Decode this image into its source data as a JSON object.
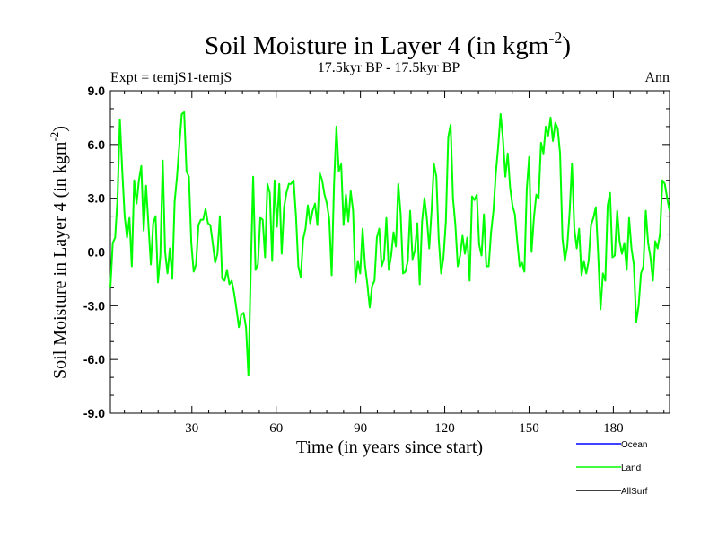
{
  "chart_data": {
    "type": "line",
    "title": "Soil Moisture in Layer 4 (in kgm",
    "title_sup": "-2",
    "title_close": ")",
    "subtitle_left": "Expt = temjS1-temjS",
    "subtitle_center": "17.5kyr BP - 17.5kyr BP",
    "subtitle_right": "Ann",
    "xlabel": "Time (in years since start)",
    "ylabel": "Soil Moisture in Layer 4 (in kgm",
    "ylabel_sup": "-2",
    "ylabel_close": ")",
    "xlim": [
      1,
      200
    ],
    "ylim": [
      -9,
      9
    ],
    "x_ticks": [
      30,
      60,
      90,
      120,
      150,
      180
    ],
    "x_tick_labels": [
      "30",
      "60",
      "90",
      "120",
      "150",
      "180"
    ],
    "y_ticks": [
      -9,
      -6,
      -3,
      0,
      3,
      6,
      9
    ],
    "y_tick_labels": [
      "-9.0",
      "-6.0",
      "-3.0",
      "0.0",
      "3.0",
      "6.0",
      "9.0"
    ],
    "zero_line": 0,
    "legend": [
      {
        "name": "Ocean",
        "color": "#0000ff"
      },
      {
        "name": "Land",
        "color": "#00ff00"
      },
      {
        "name": "AllSurf",
        "color": "#000000"
      }
    ],
    "series": [
      {
        "name": "Land",
        "color": "#00ff00",
        "x_start": 1,
        "values": [
          -2.0,
          0.5,
          0.8,
          3.0,
          7.4,
          4.5,
          2.0,
          0.8,
          1.9,
          -0.8,
          4.0,
          2.7,
          4.0,
          4.8,
          1.2,
          3.7,
          1.5,
          -0.7,
          1.6,
          2.0,
          -1.7,
          -0.2,
          5.1,
          0.0,
          -1.2,
          0.2,
          -1.5,
          2.8,
          4.2,
          6.0,
          7.7,
          7.8,
          4.5,
          4.2,
          0.5,
          -1.1,
          -0.7,
          1.5,
          1.8,
          1.8,
          2.4,
          1.6,
          1.5,
          0.5,
          -0.6,
          -0.1,
          2.0,
          -1.5,
          -1.6,
          -1.0,
          -1.8,
          -1.6,
          -2.3,
          -3.2,
          -4.2,
          -3.5,
          -3.4,
          -4.2,
          -6.9,
          -1.0,
          4.2,
          -1.0,
          -0.7,
          1.9,
          1.8,
          -0.3,
          3.8,
          3.3,
          -0.5,
          4.0,
          1.4,
          3.8,
          -0.1,
          2.5,
          3.3,
          3.8,
          3.8,
          4.0,
          2.0,
          -0.8,
          -1.4,
          0.7,
          1.3,
          2.6,
          1.6,
          2.3,
          2.7,
          1.5,
          4.4,
          4.0,
          3.2,
          2.7,
          1.8,
          -1.3,
          3.8,
          7.0,
          4.5,
          4.9,
          1.5,
          3.2,
          1.7,
          3.4,
          2.3,
          -1.7,
          -0.5,
          -1.2,
          1.3,
          -0.7,
          -1.8,
          -3.1,
          -1.9,
          -1.6,
          0.8,
          1.3,
          -0.8,
          -0.4,
          1.9,
          -1.0,
          -0.2,
          1.1,
          0.3,
          3.8,
          2.1,
          -1.2,
          -1.1,
          -0.5,
          2.3,
          -0.4,
          0.1,
          1.6,
          -1.8,
          1.7,
          3.0,
          1.9,
          0.2,
          2.3,
          4.9,
          4.2,
          0.7,
          -1.2,
          -0.3,
          1.7,
          6.4,
          7.1,
          3.0,
          1.5,
          -0.8,
          -0.2,
          0.9,
          -0.1,
          0.8,
          -1.6,
          3.1,
          2.9,
          3.2,
          0.4,
          -0.2,
          2.1,
          -0.8,
          -0.8,
          1.1,
          2.3,
          4.4,
          5.9,
          7.7,
          6.3,
          4.2,
          5.5,
          3.6,
          2.6,
          2.1,
          0.6,
          -0.8,
          -0.6,
          -1.1,
          3.5,
          5.3,
          0.0,
          1.9,
          3.2,
          3.0,
          6.1,
          5.5,
          7.0,
          6.5,
          7.5,
          6.2,
          7.2,
          6.9,
          5.5,
          0.8,
          -0.5,
          0.3,
          2.2,
          4.9,
          1.3,
          0.2,
          1.3,
          -1.3,
          -0.5,
          -1.2,
          -0.5,
          1.5,
          1.9,
          2.5,
          -0.1,
          -3.2,
          -1.2,
          -1.6,
          2.6,
          3.3,
          -0.3,
          -0.2,
          2.3,
          0.6,
          -0.1,
          0.5,
          -1.0,
          1.9,
          0.2,
          -0.7,
          -3.9,
          -3.0,
          -1.2,
          -0.8,
          2.3,
          0.5,
          -0.3,
          -1.6,
          0.6,
          0.2,
          1.0,
          4.0,
          3.8,
          3.0,
          2.3
        ]
      }
    ]
  }
}
